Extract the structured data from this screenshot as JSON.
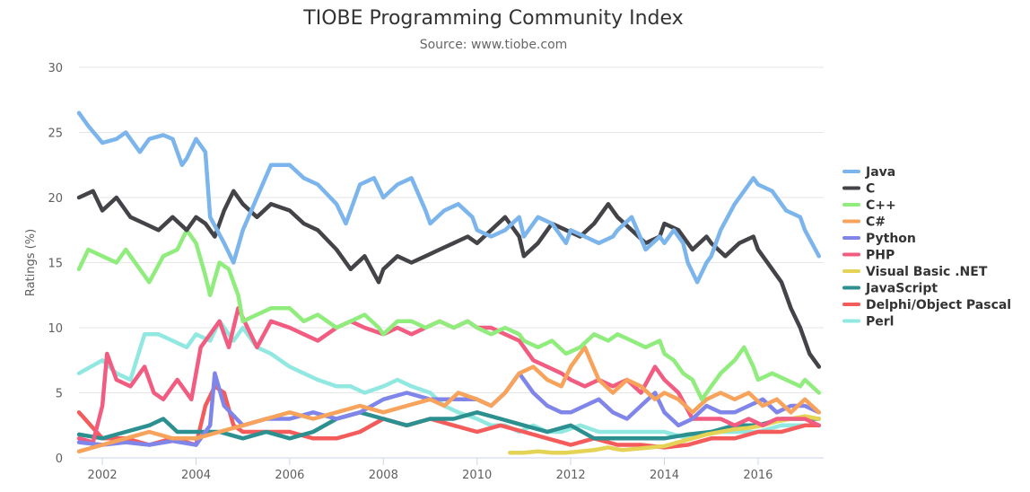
{
  "chart_data": {
    "type": "line",
    "title": "TIOBE Programming Community Index",
    "subtitle": "Source: www.tiobe.com",
    "ylabel": "Ratings (%)",
    "xlabel": "",
    "xlim": [
      2001.5,
      2017.4
    ],
    "ylim": [
      0,
      30
    ],
    "x_ticks": [
      2002,
      2004,
      2006,
      2008,
      2010,
      2012,
      2014,
      2016
    ],
    "y_ticks": [
      0,
      5,
      10,
      15,
      20,
      25,
      30
    ],
    "grid": true,
    "legend_position": "right",
    "series": [
      {
        "name": "Java",
        "color": "#7cb5ec",
        "x": [
          2001.5,
          2001.7,
          2002.0,
          2002.3,
          2002.5,
          2002.8,
          2003.0,
          2003.3,
          2003.5,
          2003.7,
          2003.8,
          2004.0,
          2004.2,
          2004.3,
          2004.6,
          2004.8,
          2005.0,
          2005.3,
          2005.6,
          2006.0,
          2006.3,
          2006.6,
          2007.0,
          2007.2,
          2007.5,
          2007.8,
          2008.0,
          2008.3,
          2008.6,
          2008.9,
          2009.0,
          2009.3,
          2009.6,
          2009.9,
          2010.0,
          2010.3,
          2010.6,
          2010.9,
          2011.0,
          2011.3,
          2011.6,
          2011.9,
          2012.0,
          2012.3,
          2012.6,
          2012.9,
          2013.0,
          2013.3,
          2013.6,
          2013.9,
          2014.0,
          2014.2,
          2014.4,
          2014.5,
          2014.7,
          2014.9,
          2015.0,
          2015.2,
          2015.5,
          2015.7,
          2015.9,
          2016.0,
          2016.3,
          2016.6,
          2016.9,
          2017.0,
          2017.3
        ],
        "y": [
          26.5,
          25.5,
          24.2,
          24.5,
          25.0,
          23.5,
          24.5,
          24.8,
          24.5,
          22.5,
          23.0,
          24.5,
          23.5,
          18.5,
          16.5,
          15.0,
          17.5,
          20.0,
          22.5,
          22.5,
          21.5,
          21.0,
          19.5,
          18.0,
          21.0,
          21.5,
          20.0,
          21.0,
          21.5,
          19.0,
          18.0,
          19.0,
          19.5,
          18.5,
          17.5,
          17.0,
          17.5,
          18.5,
          17.0,
          18.5,
          18.0,
          16.5,
          17.5,
          17.0,
          16.5,
          17.0,
          17.5,
          18.5,
          16.0,
          17.0,
          16.5,
          17.5,
          16.5,
          15.0,
          13.5,
          15.0,
          15.5,
          17.5,
          19.5,
          20.5,
          21.5,
          21.0,
          20.5,
          19.0,
          18.5,
          17.5,
          15.5
        ]
      },
      {
        "name": "C",
        "color": "#434348",
        "x": [
          2001.5,
          2001.8,
          2002.0,
          2002.3,
          2002.6,
          2002.9,
          2003.2,
          2003.5,
          2003.8,
          2004.0,
          2004.2,
          2004.4,
          2004.6,
          2004.8,
          2005.0,
          2005.3,
          2005.6,
          2006.0,
          2006.3,
          2006.6,
          2007.0,
          2007.3,
          2007.6,
          2007.9,
          2008.0,
          2008.3,
          2008.6,
          2008.9,
          2009.2,
          2009.5,
          2009.8,
          2010.0,
          2010.3,
          2010.6,
          2010.9,
          2011.0,
          2011.3,
          2011.6,
          2011.9,
          2012.2,
          2012.5,
          2012.8,
          2013.0,
          2013.3,
          2013.6,
          2013.9,
          2014.0,
          2014.3,
          2014.6,
          2014.9,
          2015.0,
          2015.3,
          2015.6,
          2015.9,
          2016.0,
          2016.2,
          2016.5,
          2016.7,
          2016.9,
          2017.0,
          2017.1,
          2017.3
        ],
        "y": [
          20.0,
          20.5,
          19.0,
          20.0,
          18.5,
          18.0,
          17.5,
          18.5,
          17.5,
          18.5,
          18.0,
          17.0,
          19.0,
          20.5,
          19.5,
          18.5,
          19.5,
          19.0,
          18.0,
          17.5,
          16.0,
          14.5,
          15.5,
          13.5,
          14.5,
          15.5,
          15.0,
          15.5,
          16.0,
          16.5,
          17.0,
          16.5,
          17.5,
          18.5,
          17.0,
          15.5,
          16.5,
          18.0,
          17.5,
          17.0,
          18.0,
          19.5,
          18.5,
          17.5,
          16.5,
          17.0,
          18.0,
          17.5,
          16.0,
          17.0,
          16.5,
          15.5,
          16.5,
          17.0,
          16.0,
          15.0,
          13.5,
          11.5,
          10.0,
          9.0,
          8.0,
          7.0
        ]
      },
      {
        "name": "C++",
        "color": "#90ed7d",
        "x": [
          2001.5,
          2001.7,
          2002.0,
          2002.3,
          2002.5,
          2002.8,
          2003.0,
          2003.3,
          2003.6,
          2003.8,
          2004.0,
          2004.2,
          2004.3,
          2004.5,
          2004.7,
          2004.9,
          2005.0,
          2005.3,
          2005.6,
          2006.0,
          2006.3,
          2006.6,
          2007.0,
          2007.3,
          2007.6,
          2007.9,
          2008.0,
          2008.3,
          2008.6,
          2008.9,
          2009.2,
          2009.5,
          2009.8,
          2010.0,
          2010.3,
          2010.6,
          2010.9,
          2011.0,
          2011.3,
          2011.6,
          2011.9,
          2012.2,
          2012.5,
          2012.8,
          2013.0,
          2013.3,
          2013.6,
          2013.9,
          2014.0,
          2014.2,
          2014.4,
          2014.6,
          2014.8,
          2015.0,
          2015.2,
          2015.5,
          2015.7,
          2015.9,
          2016.0,
          2016.3,
          2016.6,
          2016.9,
          2017.0,
          2017.3
        ],
        "y": [
          14.5,
          16.0,
          15.5,
          15.0,
          16.0,
          14.5,
          13.5,
          15.5,
          16.0,
          17.5,
          16.5,
          14.0,
          12.5,
          15.0,
          14.5,
          12.5,
          10.5,
          11.0,
          11.5,
          11.5,
          10.5,
          11.0,
          10.0,
          10.5,
          11.0,
          10.0,
          9.5,
          10.5,
          10.5,
          10.0,
          10.5,
          10.0,
          10.5,
          10.0,
          9.5,
          10.0,
          9.5,
          9.0,
          8.5,
          9.0,
          8.0,
          8.5,
          9.5,
          9.0,
          9.5,
          9.0,
          8.5,
          9.0,
          8.0,
          7.5,
          6.5,
          6.0,
          4.5,
          5.5,
          6.5,
          7.5,
          8.5,
          7.0,
          6.0,
          6.5,
          6.0,
          5.5,
          6.0,
          5.0
        ]
      },
      {
        "name": "C#",
        "color": "#f7a35c",
        "x": [
          2001.5,
          2002.0,
          2002.5,
          2003.0,
          2003.5,
          2004.0,
          2004.5,
          2005.0,
          2005.5,
          2006.0,
          2006.5,
          2007.0,
          2007.5,
          2008.0,
          2008.5,
          2009.0,
          2009.3,
          2009.6,
          2010.0,
          2010.3,
          2010.6,
          2010.9,
          2011.2,
          2011.5,
          2011.8,
          2012.0,
          2012.3,
          2012.6,
          2012.9,
          2013.2,
          2013.5,
          2013.8,
          2014.0,
          2014.3,
          2014.6,
          2014.9,
          2015.2,
          2015.5,
          2015.8,
          2016.1,
          2016.4,
          2016.7,
          2017.0,
          2017.3
        ],
        "y": [
          0.5,
          1.0,
          1.5,
          2.0,
          1.5,
          1.5,
          2.0,
          2.5,
          3.0,
          3.5,
          3.0,
          3.5,
          4.0,
          3.5,
          4.0,
          4.5,
          4.0,
          5.0,
          4.5,
          4.0,
          5.0,
          6.5,
          7.0,
          6.0,
          5.5,
          7.0,
          8.5,
          6.0,
          5.0,
          6.0,
          5.5,
          4.5,
          5.0,
          4.5,
          3.5,
          4.5,
          5.0,
          4.5,
          5.0,
          4.0,
          4.5,
          3.5,
          4.5,
          3.5
        ]
      },
      {
        "name": "Python",
        "color": "#8085e9",
        "x": [
          2001.5,
          2002.0,
          2002.5,
          2003.0,
          2003.5,
          2004.0,
          2004.3,
          2004.4,
          2004.6,
          2005.0,
          2005.5,
          2006.0,
          2006.5,
          2007.0,
          2007.5,
          2008.0,
          2008.5,
          2009.0,
          2009.5,
          2010.0,
          2010.3,
          2010.6,
          2010.9,
          2011.2,
          2011.5,
          2011.8,
          2012.0,
          2012.3,
          2012.6,
          2012.9,
          2013.2,
          2013.5,
          2013.8,
          2014.0,
          2014.3,
          2014.6,
          2014.9,
          2015.2,
          2015.5,
          2015.8,
          2016.1,
          2016.4,
          2016.7,
          2017.0,
          2017.3
        ],
        "y": [
          1.2,
          1.0,
          1.2,
          1.0,
          1.3,
          1.0,
          2.5,
          6.5,
          4.0,
          2.5,
          3.0,
          3.0,
          3.5,
          3.0,
          3.5,
          4.5,
          5.0,
          4.5,
          4.5,
          4.5,
          4.0,
          5.0,
          6.5,
          5.0,
          4.0,
          3.5,
          3.5,
          4.0,
          4.5,
          3.5,
          3.0,
          4.0,
          5.0,
          3.5,
          2.5,
          3.0,
          4.0,
          3.5,
          3.5,
          4.0,
          4.5,
          3.5,
          4.0,
          4.0,
          3.5
        ]
      },
      {
        "name": "PHP",
        "color": "#f15c80",
        "x": [
          2001.5,
          2001.8,
          2002.0,
          2002.1,
          2002.3,
          2002.6,
          2002.9,
          2003.1,
          2003.3,
          2003.6,
          2003.9,
          2004.1,
          2004.3,
          2004.5,
          2004.7,
          2004.9,
          2005.1,
          2005.3,
          2005.6,
          2006.0,
          2006.3,
          2006.6,
          2007.0,
          2007.3,
          2007.6,
          2008.0,
          2008.3,
          2008.6,
          2008.9,
          2009.2,
          2009.5,
          2009.8,
          2010.0,
          2010.3,
          2010.6,
          2010.9,
          2011.2,
          2011.5,
          2011.8,
          2012.0,
          2012.3,
          2012.6,
          2012.9,
          2013.2,
          2013.5,
          2013.8,
          2014.0,
          2014.3,
          2014.6,
          2014.9,
          2015.2,
          2015.5,
          2015.8,
          2016.1,
          2016.4,
          2016.7,
          2017.0,
          2017.3
        ],
        "y": [
          1.5,
          1.2,
          4.0,
          8.0,
          6.0,
          5.5,
          7.0,
          5.0,
          4.5,
          6.0,
          4.5,
          8.5,
          9.5,
          10.5,
          8.5,
          11.5,
          10.0,
          8.5,
          10.5,
          10.0,
          9.5,
          9.0,
          10.0,
          10.5,
          10.0,
          9.5,
          10.0,
          9.5,
          10.0,
          10.5,
          10.0,
          10.5,
          10.0,
          10.0,
          9.5,
          9.0,
          7.5,
          7.0,
          6.5,
          6.0,
          5.5,
          6.0,
          5.5,
          6.0,
          5.0,
          7.0,
          6.0,
          5.0,
          3.0,
          3.0,
          3.0,
          2.5,
          3.0,
          2.5,
          3.0,
          3.0,
          3.0,
          2.5
        ]
      },
      {
        "name": "Visual Basic .NET",
        "color": "#e4d354",
        "x": [
          2010.7,
          2011.0,
          2011.3,
          2011.6,
          2011.9,
          2012.2,
          2012.5,
          2012.8,
          2013.1,
          2013.4,
          2013.7,
          2014.0,
          2014.3,
          2014.6,
          2014.9,
          2015.2,
          2015.5,
          2015.8,
          2016.1,
          2016.4,
          2016.7,
          2017.0,
          2017.3
        ],
        "y": [
          0.4,
          0.4,
          0.5,
          0.4,
          0.4,
          0.5,
          0.6,
          0.8,
          0.6,
          0.7,
          0.8,
          0.9,
          1.2,
          1.5,
          1.8,
          2.0,
          2.2,
          2.3,
          2.5,
          2.8,
          3.0,
          3.2,
          3.0
        ]
      },
      {
        "name": "JavaScript",
        "color": "#2b908f",
        "x": [
          2001.5,
          2002.0,
          2002.5,
          2003.0,
          2003.3,
          2003.6,
          2004.0,
          2004.5,
          2005.0,
          2005.5,
          2006.0,
          2006.5,
          2007.0,
          2007.5,
          2008.0,
          2008.5,
          2009.0,
          2009.5,
          2010.0,
          2010.5,
          2011.0,
          2011.5,
          2012.0,
          2012.5,
          2013.0,
          2013.5,
          2014.0,
          2014.5,
          2015.0,
          2015.5,
          2016.0,
          2016.5,
          2017.0,
          2017.3
        ],
        "y": [
          1.8,
          1.5,
          2.0,
          2.5,
          3.0,
          2.0,
          2.0,
          2.0,
          1.5,
          2.0,
          1.5,
          2.0,
          3.0,
          3.5,
          3.0,
          2.5,
          3.0,
          3.0,
          3.5,
          3.0,
          2.5,
          2.0,
          2.5,
          1.5,
          1.5,
          1.5,
          1.5,
          1.8,
          2.0,
          2.5,
          2.5,
          3.0,
          3.0,
          3.0
        ]
      },
      {
        "name": "Delphi/Object Pascal",
        "color": "#f45b5b",
        "x": [
          2001.5,
          2002.0,
          2002.5,
          2003.0,
          2003.5,
          2004.0,
          2004.2,
          2004.4,
          2004.6,
          2004.8,
          2005.0,
          2005.5,
          2006.0,
          2006.5,
          2007.0,
          2007.5,
          2008.0,
          2008.5,
          2009.0,
          2009.5,
          2010.0,
          2010.5,
          2011.0,
          2011.5,
          2012.0,
          2012.5,
          2013.0,
          2013.5,
          2014.0,
          2014.5,
          2015.0,
          2015.5,
          2016.0,
          2016.5,
          2017.0,
          2017.3
        ],
        "y": [
          3.5,
          1.5,
          1.5,
          1.0,
          1.5,
          1.0,
          4.0,
          5.5,
          5.0,
          2.5,
          2.0,
          2.0,
          2.0,
          1.5,
          1.5,
          2.0,
          3.0,
          2.5,
          3.0,
          2.5,
          2.0,
          2.5,
          2.0,
          1.5,
          1.0,
          1.5,
          1.0,
          1.0,
          0.8,
          1.0,
          1.5,
          1.5,
          2.0,
          2.0,
          2.5,
          2.5
        ]
      },
      {
        "name": "Perl",
        "color": "#91e8e1",
        "x": [
          2001.5,
          2002.0,
          2002.3,
          2002.6,
          2002.9,
          2003.2,
          2003.5,
          2003.8,
          2004.0,
          2004.3,
          2004.5,
          2004.8,
          2005.0,
          2005.3,
          2005.6,
          2006.0,
          2006.3,
          2006.6,
          2007.0,
          2007.3,
          2007.6,
          2008.0,
          2008.3,
          2008.6,
          2009.0,
          2009.3,
          2009.6,
          2010.0,
          2010.3,
          2010.6,
          2010.9,
          2011.2,
          2011.5,
          2011.8,
          2012.2,
          2012.6,
          2013.0,
          2013.5,
          2014.0,
          2014.5,
          2015.0,
          2015.5,
          2016.0,
          2016.5,
          2017.0,
          2017.3
        ],
        "y": [
          6.5,
          7.5,
          6.5,
          6.0,
          9.5,
          9.5,
          9.0,
          8.5,
          9.5,
          9.0,
          10.5,
          9.0,
          10.0,
          8.5,
          8.0,
          7.0,
          6.5,
          6.0,
          5.5,
          5.5,
          5.0,
          5.5,
          6.0,
          5.5,
          5.0,
          4.0,
          3.5,
          3.0,
          2.5,
          2.5,
          2.0,
          2.5,
          2.0,
          2.0,
          2.5,
          2.0,
          2.0,
          2.0,
          2.0,
          1.5,
          2.0,
          2.0,
          2.0,
          2.5,
          2.5,
          2.5
        ]
      }
    ]
  }
}
